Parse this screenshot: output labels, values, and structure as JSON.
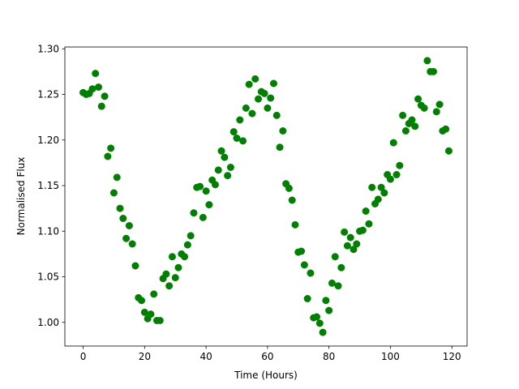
{
  "chart_data": {
    "type": "scatter",
    "x_label": "Time (Hours)",
    "y_label": "Normalised Flux",
    "color": "green",
    "x": [
      0,
      1,
      2,
      3,
      4,
      5,
      6,
      7,
      8,
      9,
      10,
      11,
      12,
      13,
      14,
      15,
      16,
      17,
      18,
      19,
      20,
      21,
      22,
      23,
      24,
      25,
      26,
      27,
      28,
      29,
      30,
      31,
      32,
      33,
      34,
      35,
      36,
      37,
      38,
      39,
      40,
      41,
      42,
      43,
      44,
      45,
      46,
      47,
      48,
      49,
      50,
      51,
      52,
      53,
      54,
      55,
      56,
      57,
      58,
      59,
      60,
      61,
      62,
      63,
      64,
      65,
      66,
      67,
      68,
      69,
      70,
      71,
      72,
      73,
      74,
      75,
      76,
      77,
      78,
      79,
      80,
      81,
      82,
      83,
      84,
      85,
      86,
      87,
      88,
      89,
      90,
      91,
      92,
      93,
      94,
      95,
      96,
      97,
      98,
      99,
      100,
      101,
      102,
      103,
      104,
      105,
      106,
      107,
      108,
      109,
      110,
      111,
      112,
      113,
      114,
      115,
      116,
      117,
      118,
      119
    ],
    "values": [
      1.252,
      1.25,
      1.251,
      1.256,
      1.273,
      1.258,
      1.237,
      1.248,
      1.182,
      1.191,
      1.142,
      1.159,
      1.125,
      1.114,
      1.092,
      1.106,
      1.086,
      1.062,
      1.027,
      1.024,
      1.011,
      1.004,
      1.009,
      1.031,
      1.002,
      1.002,
      1.048,
      1.053,
      1.04,
      1.072,
      1.049,
      1.06,
      1.075,
      1.072,
      1.085,
      1.095,
      1.12,
      1.148,
      1.149,
      1.115,
      1.144,
      1.129,
      1.156,
      1.151,
      1.167,
      1.188,
      1.181,
      1.161,
      1.17,
      1.209,
      1.202,
      1.222,
      1.199,
      1.235,
      1.261,
      1.229,
      1.267,
      1.245,
      1.253,
      1.251,
      1.235,
      1.246,
      1.262,
      1.227,
      1.192,
      1.21,
      1.152,
      1.147,
      1.134,
      1.107,
      1.077,
      1.078,
      1.063,
      1.026,
      1.054,
      1.005,
      1.006,
      0.999,
      0.989,
      1.024,
      1.013,
      1.043,
      1.072,
      1.04,
      1.06,
      1.099,
      1.084,
      1.093,
      1.08,
      1.086,
      1.1,
      1.101,
      1.122,
      1.108,
      1.148,
      1.13,
      1.135,
      1.148,
      1.142,
      1.162,
      1.157,
      1.197,
      1.162,
      1.172,
      1.227,
      1.21,
      1.218,
      1.222,
      1.215,
      1.245,
      1.238,
      1.235,
      1.287,
      1.275,
      1.275,
      1.231,
      1.239,
      1.21,
      1.212,
      1.188
    ],
    "xlim": [
      -5.95,
      124.95
    ],
    "ylim": [
      0.974,
      1.302
    ],
    "xticks": [
      0,
      20,
      40,
      60,
      80,
      100,
      120
    ],
    "yticks": [
      {
        "value": 1.0,
        "label": "1.00"
      },
      1.05,
      {
        "value": 1.1,
        "label": "1.10"
      },
      1.15,
      {
        "value": 1.2,
        "label": "1.20"
      },
      1.25,
      {
        "value": 1.3,
        "label": "1.30"
      }
    ]
  }
}
